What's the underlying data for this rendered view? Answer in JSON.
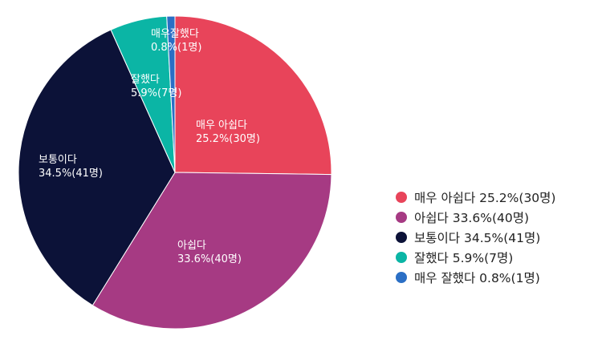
{
  "chart_data": {
    "type": "pie",
    "categories": [
      "매우 아쉽다",
      "아쉽다",
      "보통이다",
      "잘했다",
      "매우 잘했다"
    ],
    "values": [
      30,
      40,
      41,
      7,
      1
    ],
    "percents": [
      "25.2%",
      "33.6%",
      "34.5%",
      "5.9%",
      "0.8%"
    ],
    "counts": [
      "(30명)",
      "(40명)",
      "(41명)",
      "(7명)",
      "(1명)"
    ],
    "colors": [
      "#e8445a",
      "#a63a83",
      "#0c1238",
      "#0bb5a5",
      "#2b6fc5"
    ],
    "slice_labels": [
      {
        "line1": "매우 아쉽다",
        "line2": "25.2%(30명)"
      },
      {
        "line1": "아쉽다",
        "line2": "33.6%(40명)"
      },
      {
        "line1": "보통이다",
        "line2": "34.5%(41명)"
      },
      {
        "line1": "잘했다",
        "line2": "5.9%(7명)"
      },
      {
        "line1": "매우잘했다",
        "line2": "0.8%(1명)"
      }
    ],
    "legend": [
      "매우 아쉽다 25.2%(30명)",
      "아쉽다 33.6%(40명)",
      "보통이다 34.5%(41명)",
      "잘했다 5.9%(7명)",
      "매우 잘했다 0.8%(1명)"
    ],
    "legend_position": "right"
  }
}
